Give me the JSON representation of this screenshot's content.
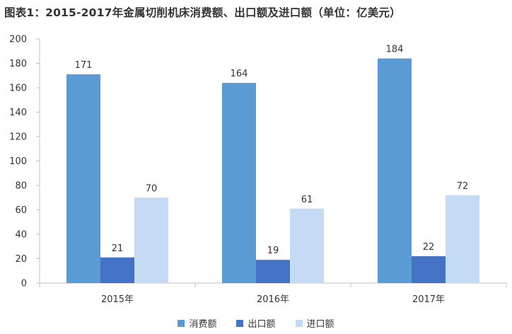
{
  "chart_data": {
    "type": "bar",
    "title": "图表1：2015-2017年金属切削机床消费额、出口额及进口额（单位：亿美元）",
    "categories": [
      "2015年",
      "2016年",
      "2017年"
    ],
    "series": [
      {
        "name": "消费额",
        "values": [
          171,
          164,
          184
        ],
        "color": "#5B9BD5"
      },
      {
        "name": "出口额",
        "values": [
          21,
          19,
          22
        ],
        "color": "#4472C4"
      },
      {
        "name": "进口额",
        "values": [
          70,
          61,
          72
        ],
        "color": "#C5DBF5"
      }
    ],
    "y_ticks": [
      0,
      20,
      40,
      60,
      80,
      100,
      120,
      140,
      160,
      180,
      200
    ],
    "ylim": [
      0,
      200
    ],
    "xlabel": "",
    "ylabel": "",
    "grid": false,
    "legend_position": "bottom"
  }
}
